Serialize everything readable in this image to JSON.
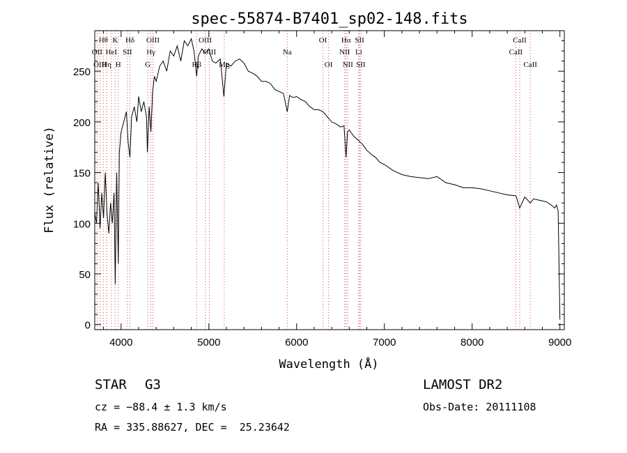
{
  "chart_data": {
    "type": "line",
    "title": "spec-55874-B7401_sp02-148.fits",
    "xlabel": "Wavelength (Å)",
    "ylabel": "Flux (relative)",
    "xlim": [
      3700,
      9050
    ],
    "ylim": [
      -5,
      290
    ],
    "xticks": [
      4000,
      5000,
      6000,
      7000,
      8000,
      9000
    ],
    "yticks": [
      0,
      50,
      100,
      150,
      200,
      250
    ],
    "grid": false,
    "series": [
      {
        "x": [
          3700,
          3720,
          3740,
          3760,
          3780,
          3800,
          3820,
          3840,
          3860,
          3880,
          3900,
          3920,
          3933,
          3950,
          3968,
          3980,
          4000,
          4030,
          4060,
          4080,
          4101,
          4120,
          4150,
          4180,
          4200,
          4230,
          4260,
          4290,
          4300,
          4320,
          4340,
          4360,
          4380,
          4400,
          4440,
          4480,
          4520,
          4560,
          4600,
          4640,
          4680,
          4720,
          4760,
          4800,
          4830,
          4861,
          4880,
          4920,
          4960,
          5000,
          5040,
          5080,
          5130,
          5172,
          5200,
          5250,
          5300,
          5350,
          5400,
          5450,
          5500,
          5550,
          5600,
          5650,
          5700,
          5750,
          5800,
          5850,
          5893,
          5920,
          5960,
          6000,
          6050,
          6100,
          6150,
          6200,
          6250,
          6300,
          6350,
          6400,
          6450,
          6500,
          6540,
          6563,
          6580,
          6600,
          6650,
          6700,
          6750,
          6800,
          6850,
          6900,
          6950,
          7000,
          7050,
          7100,
          7150,
          7200,
          7300,
          7400,
          7500,
          7600,
          7700,
          7800,
          7900,
          8000,
          8100,
          8200,
          8300,
          8400,
          8500,
          8542,
          8600,
          8662,
          8700,
          8750,
          8800,
          8850,
          8900,
          8940,
          8960,
          8980,
          9000
        ],
        "y": [
          110,
          100,
          140,
          95,
          130,
          105,
          150,
          110,
          90,
          120,
          100,
          130,
          40,
          150,
          60,
          170,
          190,
          200,
          210,
          180,
          165,
          205,
          215,
          200,
          225,
          210,
          220,
          205,
          170,
          215,
          190,
          230,
          245,
          240,
          255,
          260,
          250,
          270,
          265,
          275,
          260,
          280,
          275,
          282,
          270,
          245,
          265,
          272,
          268,
          272,
          260,
          258,
          262,
          225,
          258,
          255,
          260,
          262,
          258,
          250,
          248,
          245,
          240,
          240,
          238,
          232,
          230,
          228,
          210,
          226,
          224,
          225,
          222,
          220,
          215,
          212,
          212,
          210,
          205,
          200,
          198,
          195,
          196,
          165,
          190,
          192,
          186,
          182,
          178,
          172,
          168,
          165,
          160,
          158,
          155,
          152,
          150,
          148,
          146,
          145,
          144,
          146,
          140,
          138,
          135,
          135,
          134,
          132,
          130,
          128,
          127,
          115,
          126,
          120,
          124,
          123,
          122,
          121,
          118,
          115,
          118,
          112,
          5
        ]
      }
    ],
    "lines": [
      {
        "label": "Hθ",
        "x": 3798,
        "row": 1
      },
      {
        "label": "OII",
        "x": 3727,
        "row": 2
      },
      {
        "label": "OIII",
        "x": 3760,
        "row": 3
      },
      {
        "label": "Hη",
        "x": 3835,
        "row": 3
      },
      {
        "label": "HeI",
        "x": 3889,
        "row": 2
      },
      {
        "label": "K",
        "x": 3933,
        "row": 1
      },
      {
        "label": "H",
        "x": 3968,
        "row": 3
      },
      {
        "label": "SII",
        "x": 4072,
        "row": 2
      },
      {
        "label": "Hδ",
        "x": 4101,
        "row": 1
      },
      {
        "label": "OIII",
        "x": 4363,
        "row": 1
      },
      {
        "label": "Hγ",
        "x": 4340,
        "row": 2
      },
      {
        "label": "G",
        "x": 4304,
        "row": 3
      },
      {
        "label": "Hβ",
        "x": 4861,
        "row": 3
      },
      {
        "label": "OIII",
        "x": 4959,
        "row": 1
      },
      {
        "label": "OIII",
        "x": 5007,
        "row": 2
      },
      {
        "label": "Mg",
        "x": 5175,
        "row": 3
      },
      {
        "label": "Na",
        "x": 5893,
        "row": 2
      },
      {
        "label": "OI",
        "x": 6300,
        "row": 1
      },
      {
        "label": "OI",
        "x": 6364,
        "row": 3
      },
      {
        "label": "NII",
        "x": 6548,
        "row": 2
      },
      {
        "label": "Hα",
        "x": 6563,
        "row": 1
      },
      {
        "label": "NII",
        "x": 6583,
        "row": 3
      },
      {
        "label": "SII",
        "x": 6717,
        "row": 1
      },
      {
        "label": "Li",
        "x": 6708,
        "row": 2
      },
      {
        "label": "SII",
        "x": 6731,
        "row": 3
      },
      {
        "label": "CaII",
        "x": 8498,
        "row": 2
      },
      {
        "label": "CaII",
        "x": 8542,
        "row": 1
      },
      {
        "label": "CaII",
        "x": 8662,
        "row": 3
      }
    ]
  },
  "info": {
    "object_type": "STAR",
    "subclass": "G3",
    "survey": "LAMOST DR2",
    "cz": "cz = −88.4 ± 1.3 km/s",
    "obs_date": "Obs-Date: 20111108",
    "coords": "RA = 335.88627, DEC =  25.23642"
  }
}
